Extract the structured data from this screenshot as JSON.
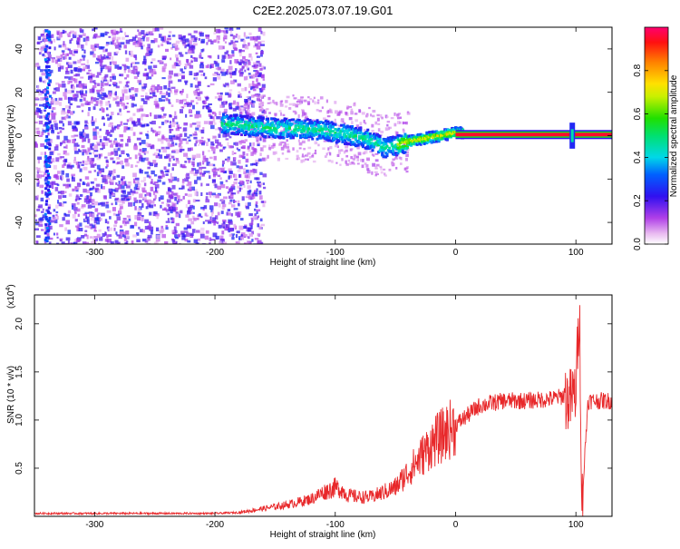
{
  "title": "C2E2.2025.073.07.19.G01",
  "colorbar": {
    "label": "Normalized spectral amplitude",
    "ticks": [
      "0.0",
      "0.2",
      "0.4",
      "0.6",
      "0.8"
    ],
    "tick_values": [
      0.0,
      0.2,
      0.4,
      0.6,
      0.8
    ],
    "range": [
      0,
      1
    ]
  },
  "chart_data": [
    {
      "type": "heatmap",
      "title": "",
      "xlabel": "Height of straight line (km)",
      "ylabel": "Frequency (Hz)",
      "xlim": [
        -350,
        130
      ],
      "ylim": [
        -50,
        50
      ],
      "xticks": [
        -300,
        -200,
        -100,
        0,
        100
      ],
      "xtick_labels": [
        "-300",
        "-200",
        "-100",
        "0",
        "100"
      ],
      "yticks": [
        -40,
        -20,
        0,
        20,
        40
      ],
      "ytick_labels": [
        "-40",
        "-20",
        "0",
        "20",
        "40"
      ],
      "colormap": "rainbow (white-magenta-blue-cyan-green-yellow-red)",
      "ridge": {
        "x": [
          -190,
          -170,
          -150,
          -130,
          -110,
          -90,
          -80,
          -70,
          -60,
          -50,
          -40,
          -30,
          -20,
          -10,
          0,
          20,
          60,
          95,
          100,
          130
        ],
        "freq": [
          6,
          5,
          4,
          4,
          3,
          1,
          0,
          -2,
          -5,
          -4,
          -2,
          -1,
          0,
          1,
          2,
          1,
          0.5,
          0.5,
          0.5,
          0.5
        ]
      },
      "features": {
        "scatter_region_x": [
          -350,
          -180
        ],
        "steady_line_freq": 0.5,
        "steady_line_x": [
          0,
          130
        ],
        "spike_x": 97,
        "left_streak_x": -340
      }
    },
    {
      "type": "line",
      "title": "",
      "xlabel": "Height of straight line (km)",
      "ylabel": "SNR (10 * v/v)",
      "multiplier": "(x10",
      "multiplier_exp": "4",
      "multiplier_close": ")",
      "xlim": [
        -350,
        130
      ],
      "ylim": [
        0,
        2.3
      ],
      "xticks": [
        -300,
        -200,
        -100,
        0,
        100
      ],
      "xtick_labels": [
        "-300",
        "-200",
        "-100",
        "0",
        "100"
      ],
      "yticks": [
        0.5,
        1.0,
        1.5,
        2.0
      ],
      "ytick_labels": [
        "0.5",
        "1.0",
        "1.5",
        "2.0"
      ],
      "series": [
        {
          "color": "#e8282a",
          "x": [
            -350,
            -300,
            -250,
            -200,
            -180,
            -170,
            -160,
            -140,
            -120,
            -110,
            -100,
            -95,
            -90,
            -80,
            -70,
            -60,
            -50,
            -40,
            -30,
            -20,
            -10,
            0,
            10,
            20,
            40,
            60,
            80,
            90,
            95,
            100,
            103,
            105,
            110,
            120,
            130
          ],
          "values": [
            0.03,
            0.03,
            0.03,
            0.03,
            0.04,
            0.06,
            0.08,
            0.12,
            0.18,
            0.25,
            0.3,
            0.28,
            0.22,
            0.2,
            0.2,
            0.25,
            0.3,
            0.45,
            0.6,
            0.75,
            0.85,
            0.95,
            1.05,
            1.15,
            1.2,
            1.2,
            1.22,
            1.25,
            1.2,
            1.3,
            2.2,
            0.1,
            1.2,
            1.2,
            1.2
          ]
        }
      ]
    }
  ]
}
